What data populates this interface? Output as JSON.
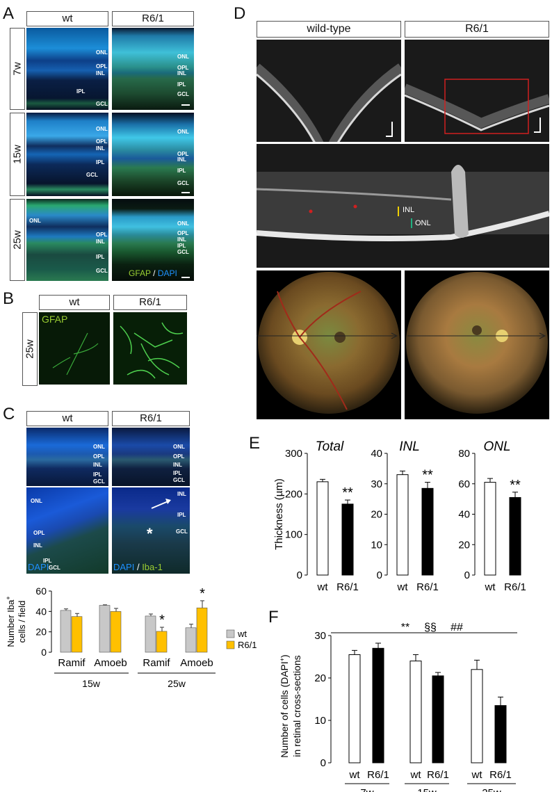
{
  "panels": {
    "A": {
      "label": "A",
      "columns": [
        "wt",
        "R6/1"
      ],
      "rows": [
        "7w",
        "15w",
        "25w"
      ],
      "layers": [
        "ONL",
        "OPL",
        "INL",
        "IPL",
        "GCL"
      ],
      "legend": {
        "stain1": "GFAP",
        "sep": " / ",
        "stain2": "DAPI"
      },
      "colors": {
        "gfap": "#9acd32",
        "dapi": "#1e90ff"
      }
    },
    "B": {
      "label": "B",
      "columns": [
        "wt",
        "R6/1"
      ],
      "row": "25w",
      "stain": "GFAP"
    },
    "C": {
      "label": "C",
      "columns": [
        "wt",
        "R6/1"
      ],
      "layers": [
        "ONL",
        "OPL",
        "INL",
        "IPL",
        "GCL"
      ],
      "legend": {
        "stain1": "DAPI",
        "sep": " / ",
        "stain2": "Iba-1"
      },
      "asterisk": "*"
    },
    "D": {
      "label": "D",
      "columns": [
        "wild-type",
        "R6/1"
      ],
      "oct_labels": [
        "INL",
        "ONL"
      ]
    },
    "E": {
      "label": "E"
    },
    "F": {
      "label": "F"
    }
  },
  "chart_data": [
    {
      "id": "C-bar",
      "type": "bar",
      "ylabel_line1": "Number Iba",
      "ylabel_sup": "+",
      "ylabel_line2": "cells / field",
      "ylim": [
        0,
        60
      ],
      "yticks": [
        0,
        20,
        40,
        60
      ],
      "groups": [
        "15w",
        "25w"
      ],
      "categories": [
        "Ramif",
        "Amoeb",
        "Ramif",
        "Amoeb"
      ],
      "series": [
        {
          "name": "wt",
          "color": "#c8c8c8",
          "values": [
            41,
            46,
            35.5,
            24
          ],
          "errors": [
            1.5,
            0.5,
            2,
            3.5
          ]
        },
        {
          "name": "R6/1",
          "color": "#ffc000",
          "values": [
            35,
            40,
            20.5,
            43.5
          ],
          "errors": [
            3,
            3,
            4,
            7
          ]
        }
      ],
      "significance": [
        "",
        "",
        "*",
        "*"
      ],
      "legend_position": "right"
    },
    {
      "id": "E-total",
      "type": "bar",
      "title": "Total",
      "ylabel": "Thickness (µm)",
      "ylim": [
        0,
        300
      ],
      "yticks": [
        0,
        100,
        200,
        300
      ],
      "categories": [
        "wt",
        "R6/1"
      ],
      "values": [
        230,
        175
      ],
      "errors": [
        6,
        10
      ],
      "significance": [
        "",
        "**"
      ]
    },
    {
      "id": "E-inl",
      "type": "bar",
      "title": "INL",
      "ylim": [
        0,
        40
      ],
      "yticks": [
        0,
        10,
        20,
        30,
        40
      ],
      "categories": [
        "wt",
        "R6/1"
      ],
      "values": [
        33,
        28.5
      ],
      "errors": [
        1.2,
        2
      ],
      "significance": [
        "",
        "**"
      ]
    },
    {
      "id": "E-onl",
      "type": "bar",
      "title": "ONL",
      "ylim": [
        0,
        80
      ],
      "yticks": [
        0,
        20,
        40,
        60,
        80
      ],
      "categories": [
        "wt",
        "R6/1"
      ],
      "values": [
        61,
        51
      ],
      "errors": [
        2.5,
        3.5
      ],
      "significance": [
        "",
        "**"
      ]
    },
    {
      "id": "F-bar",
      "type": "bar",
      "ylabel_line1": "Number of cells (DAPI",
      "ylabel_sup": "+",
      "ylabel_line1_end": ")",
      "ylabel_line2": "in retinal cross-sections",
      "ylim": [
        0,
        30
      ],
      "yticks": [
        0,
        10,
        20,
        30
      ],
      "groups": [
        "7w",
        "15w",
        "25w"
      ],
      "categories": [
        "wt",
        "R6/1",
        "wt",
        "R6/1",
        "wt",
        "R6/1"
      ],
      "values": [
        25.5,
        27,
        24,
        20.5,
        22,
        13.5
      ],
      "errors": [
        1,
        1.2,
        1.5,
        0.8,
        2.2,
        2
      ],
      "significance_line": [
        "**",
        "§§",
        "##"
      ]
    }
  ]
}
